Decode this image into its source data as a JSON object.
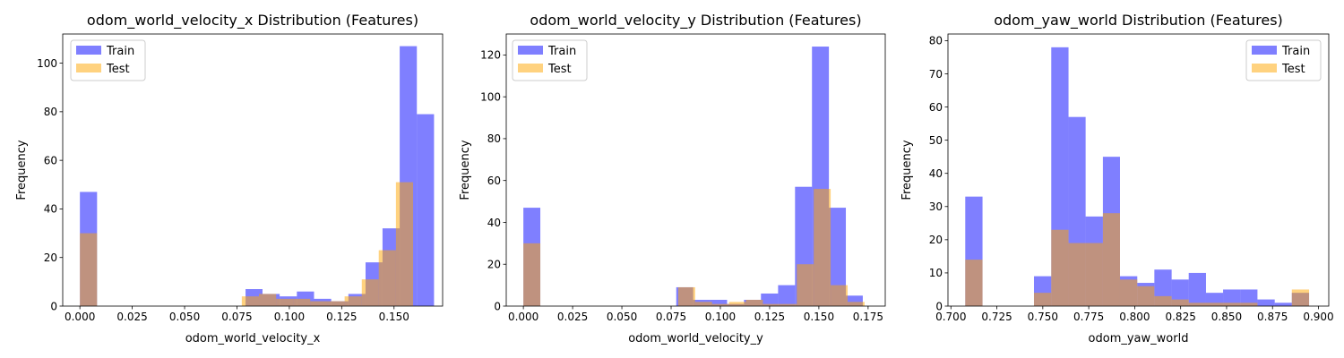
{
  "chart_data": [
    {
      "type": "histogram",
      "title": "odom_world_velocity_x Distribution (Features)",
      "xlabel": "odom_world_velocity_x",
      "ylabel": "Frequency",
      "xlim": [
        -0.0082,
        0.1732
      ],
      "ylim": [
        0,
        112
      ],
      "xticks": [
        0.0,
        0.025,
        0.05,
        0.075,
        0.1,
        0.125,
        0.15
      ],
      "xtick_labels": [
        "0.000",
        "0.025",
        "0.050",
        "0.075",
        "0.100",
        "0.125",
        "0.150"
      ],
      "yticks": [
        0,
        20,
        40,
        60,
        80,
        100
      ],
      "ytick_labels": [
        "0",
        "20",
        "40",
        "60",
        "80",
        "100"
      ],
      "legend_position": "upper left",
      "series": [
        {
          "name": "Train",
          "color": "#0000ff",
          "alpha": 0.5,
          "bins": [
            [
              0.0,
              0.0082,
              47
            ],
            [
              0.0791,
              0.0872,
              7
            ],
            [
              0.0872,
              0.0954,
              5
            ],
            [
              0.0954,
              0.1036,
              4
            ],
            [
              0.1036,
              0.1118,
              6
            ],
            [
              0.1118,
              0.12,
              3
            ],
            [
              0.12,
              0.1282,
              2
            ],
            [
              0.1282,
              0.1364,
              5
            ],
            [
              0.1364,
              0.1445,
              18
            ],
            [
              0.1445,
              0.1527,
              32
            ],
            [
              0.1527,
              0.1609,
              107
            ],
            [
              0.1609,
              0.1691,
              79
            ]
          ]
        },
        {
          "name": "Test",
          "color": "#ffa500",
          "alpha": 0.5,
          "bins": [
            [
              0.0,
              0.0082,
              30
            ],
            [
              0.0773,
              0.0855,
              4
            ],
            [
              0.0855,
              0.0937,
              5
            ],
            [
              0.0937,
              0.1018,
              3
            ],
            [
              0.1018,
              0.11,
              3
            ],
            [
              0.11,
              0.1182,
              2
            ],
            [
              0.1182,
              0.1264,
              2
            ],
            [
              0.1264,
              0.1346,
              4
            ],
            [
              0.1346,
              0.1427,
              11
            ],
            [
              0.1427,
              0.1509,
              23
            ],
            [
              0.1509,
              0.1591,
              51
            ]
          ]
        }
      ]
    },
    {
      "type": "histogram",
      "title": "odom_world_velocity_y Distribution (Features)",
      "xlabel": "odom_world_velocity_y",
      "ylabel": "Frequency",
      "xlim": [
        -0.0087,
        0.1837
      ],
      "ylim": [
        0,
        130
      ],
      "xticks": [
        0.0,
        0.025,
        0.05,
        0.075,
        0.1,
        0.125,
        0.15,
        0.175
      ],
      "xtick_labels": [
        "0.000",
        "0.025",
        "0.050",
        "0.075",
        "0.100",
        "0.125",
        "0.150",
        "0.175"
      ],
      "yticks": [
        0,
        20,
        40,
        60,
        80,
        100,
        120
      ],
      "ytick_labels": [
        "0",
        "20",
        "40",
        "60",
        "80",
        "100",
        "120"
      ],
      "legend_position": "upper left",
      "series": [
        {
          "name": "Train",
          "color": "#0000ff",
          "alpha": 0.5,
          "bins": [
            [
              0.0,
              0.0086,
              47
            ],
            [
              0.0776,
              0.0862,
              9
            ],
            [
              0.0862,
              0.0948,
              3
            ],
            [
              0.0948,
              0.1034,
              3
            ],
            [
              0.1034,
              0.112,
              1
            ],
            [
              0.112,
              0.1206,
              3
            ],
            [
              0.1206,
              0.1293,
              6
            ],
            [
              0.1293,
              0.1379,
              10
            ],
            [
              0.1379,
              0.1465,
              57
            ],
            [
              0.1465,
              0.1551,
              124
            ],
            [
              0.1551,
              0.1637,
              47
            ],
            [
              0.1637,
              0.1723,
              5
            ]
          ]
        },
        {
          "name": "Test",
          "color": "#ffa500",
          "alpha": 0.5,
          "bins": [
            [
              0.0,
              0.0086,
              30
            ],
            [
              0.0786,
              0.0872,
              9
            ],
            [
              0.0872,
              0.0958,
              2
            ],
            [
              0.0958,
              0.1044,
              1
            ],
            [
              0.1044,
              0.113,
              2
            ],
            [
              0.113,
              0.1216,
              3
            ],
            [
              0.1216,
              0.1302,
              1
            ],
            [
              0.1302,
              0.1388,
              1
            ],
            [
              0.1388,
              0.1474,
              20
            ],
            [
              0.1474,
              0.156,
              56
            ],
            [
              0.156,
              0.1646,
              10
            ],
            [
              0.1646,
              0.1732,
              2
            ]
          ]
        }
      ]
    },
    {
      "type": "histogram",
      "title": "odom_yaw_world Distribution (Features)",
      "xlabel": "odom_yaw_world",
      "ylabel": "Frequency",
      "xlim": [
        0.6984,
        0.9056
      ],
      "ylim": [
        0,
        82
      ],
      "xticks": [
        0.7,
        0.725,
        0.75,
        0.775,
        0.8,
        0.825,
        0.85,
        0.875,
        0.9
      ],
      "xtick_labels": [
        "0.700",
        "0.725",
        "0.750",
        "0.775",
        "0.800",
        "0.825",
        "0.850",
        "0.875",
        "0.900"
      ],
      "yticks": [
        0,
        10,
        20,
        30,
        40,
        50,
        60,
        70,
        80
      ],
      "ytick_labels": [
        "0",
        "10",
        "20",
        "30",
        "40",
        "50",
        "60",
        "70",
        "80"
      ],
      "legend_position": "upper right",
      "series": [
        {
          "name": "Train",
          "color": "#0000ff",
          "alpha": 0.5,
          "bins": [
            [
              0.7078,
              0.7172,
              33
            ],
            [
              0.7452,
              0.7546,
              9
            ],
            [
              0.7546,
              0.764,
              78
            ],
            [
              0.764,
              0.7733,
              57
            ],
            [
              0.7733,
              0.7827,
              27
            ],
            [
              0.7827,
              0.792,
              45
            ],
            [
              0.792,
              0.8014,
              9
            ],
            [
              0.8014,
              0.8107,
              7
            ],
            [
              0.8107,
              0.8201,
              11
            ],
            [
              0.8201,
              0.8294,
              8
            ],
            [
              0.8294,
              0.8388,
              10
            ],
            [
              0.8388,
              0.8481,
              4
            ],
            [
              0.8481,
              0.8575,
              5
            ],
            [
              0.8575,
              0.8668,
              5
            ],
            [
              0.8668,
              0.8762,
              2
            ],
            [
              0.8762,
              0.8855,
              1
            ],
            [
              0.8855,
              0.8949,
              4
            ]
          ]
        },
        {
          "name": "Test",
          "color": "#ffa500",
          "alpha": 0.5,
          "bins": [
            [
              0.7078,
              0.7172,
              14
            ],
            [
              0.7452,
              0.7546,
              4
            ],
            [
              0.7546,
              0.764,
              23
            ],
            [
              0.764,
              0.7733,
              19
            ],
            [
              0.7733,
              0.7827,
              19
            ],
            [
              0.7827,
              0.792,
              28
            ],
            [
              0.792,
              0.8014,
              8
            ],
            [
              0.8014,
              0.8107,
              6
            ],
            [
              0.8107,
              0.8201,
              3
            ],
            [
              0.8201,
              0.8294,
              2
            ],
            [
              0.8294,
              0.8388,
              1
            ],
            [
              0.8388,
              0.8481,
              1
            ],
            [
              0.8481,
              0.8575,
              1
            ],
            [
              0.8575,
              0.8668,
              1
            ],
            [
              0.8668,
              0.8762,
              0
            ],
            [
              0.8762,
              0.8855,
              0
            ],
            [
              0.8855,
              0.8949,
              5
            ]
          ]
        }
      ]
    }
  ]
}
